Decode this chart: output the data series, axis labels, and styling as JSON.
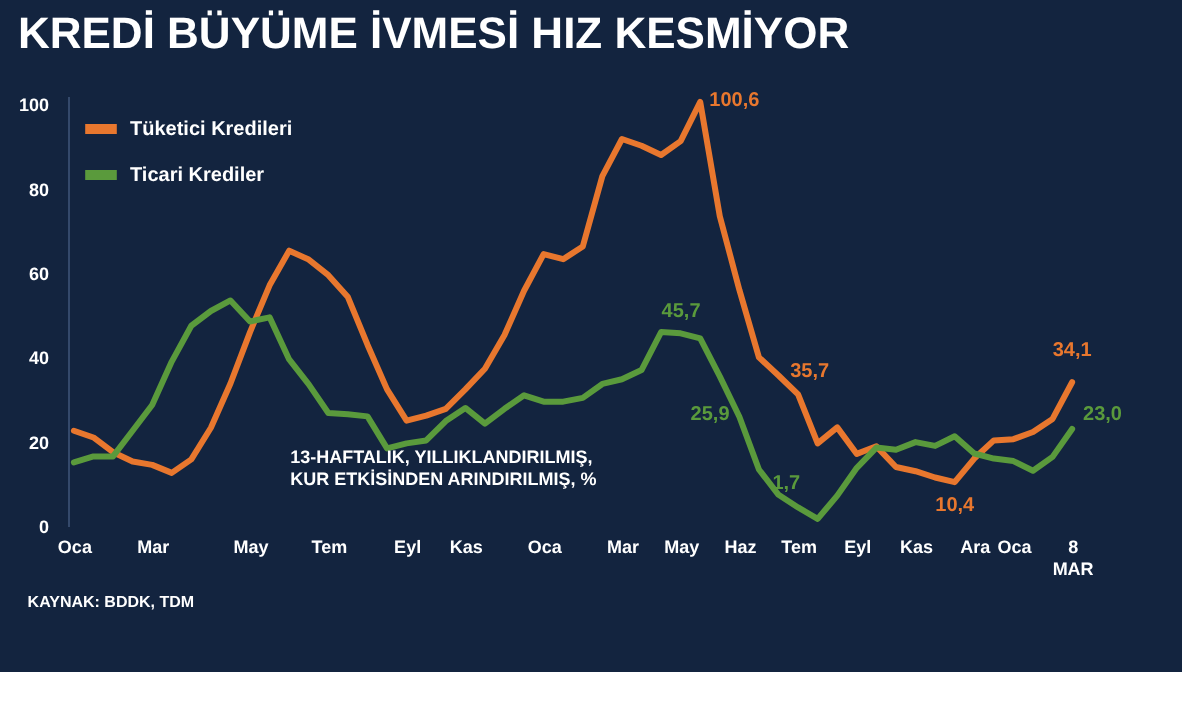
{
  "chart_data": {
    "type": "line",
    "title": "KREDİ BÜYÜME İVMESİ HIZ KESMİYOR",
    "categories": [
      "Oca",
      null,
      null,
      null,
      "Mar",
      null,
      null,
      null,
      null,
      "May",
      null,
      null,
      null,
      "Tem",
      null,
      null,
      null,
      "Eyl",
      null,
      null,
      "Kas",
      null,
      null,
      null,
      "Oca",
      null,
      null,
      null,
      "Mar",
      null,
      null,
      "May",
      null,
      null,
      "Haz",
      null,
      null,
      "Tem",
      null,
      null,
      "Eyl",
      null,
      null,
      "Kas",
      null,
      null,
      "Ara",
      null,
      "Oca",
      null,
      null,
      "8\nMAR"
    ],
    "series": [
      {
        "name": "Tüketici Kredileri",
        "color": "#e8772e",
        "values": [
          22.6,
          21,
          17.5,
          15.3,
          14.5,
          12.6,
          15.8,
          23.3,
          33.8,
          46,
          57.1,
          65.3,
          63.2,
          59.5,
          54.3,
          43,
          32.4,
          25,
          26.2,
          27.8,
          32.4,
          37.3,
          45.3,
          55.8,
          64.5,
          63.3,
          66.3,
          83,
          91.8,
          90.2,
          88,
          91.3,
          100.6,
          73.5,
          56,
          40,
          35.7,
          31.2,
          19.6,
          23.4,
          17.1,
          18.9,
          14,
          13,
          11.5,
          10.4,
          16,
          20.3,
          20.6,
          22.3,
          25.4,
          34.1
        ]
      },
      {
        "name": "Ticari Krediler",
        "color": "#5a9a3c",
        "values": [
          15.1,
          16.5,
          16.5,
          22.6,
          28.7,
          39,
          47.5,
          51,
          53.5,
          48.5,
          49.5,
          39.5,
          33.6,
          26.8,
          26.5,
          26,
          18.4,
          19.6,
          20.3,
          24.9,
          28,
          24.3,
          27.8,
          31,
          29.5,
          29.5,
          30.4,
          33.7,
          34.8,
          37,
          46,
          45.7,
          44.5,
          35.5,
          25.9,
          13.4,
          7.4,
          4.4,
          1.7,
          7.2,
          13.8,
          18.6,
          18.1,
          19.9,
          19,
          21.3,
          17.2,
          16,
          15.4,
          13.1,
          16.4,
          23.0
        ]
      }
    ],
    "ylim": [
      0,
      102
    ],
    "yticks": [
      0,
      20,
      40,
      60,
      80,
      100
    ],
    "grid": false,
    "legend": "top left",
    "annotations": [
      "100,6",
      "45,7",
      "35,7",
      "25,9",
      "1,7",
      "10,4",
      "34,1",
      "23,0",
      "13-HAFTALIK, YILLIKLANDIRILMIŞ,\nKUR ETKİSİNDEN ARINDIRILMIŞ, %",
      "KAYNAK: BDDK, TDM"
    ]
  }
}
